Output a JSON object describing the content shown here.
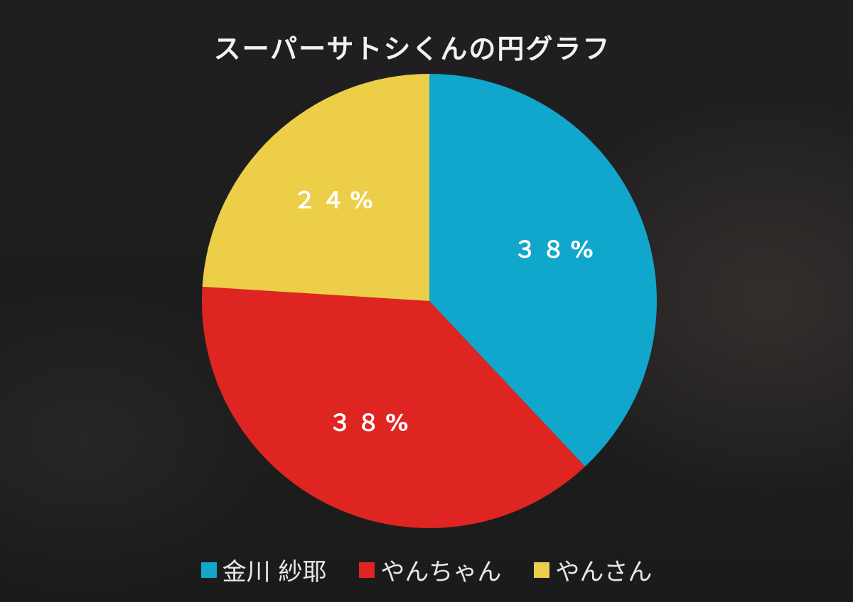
{
  "chart_data": {
    "type": "pie",
    "title": "スーパーサトシくんの円グラフ",
    "categories": [
      "金川 紗耶",
      "やんちゃん",
      "やんさん"
    ],
    "values": [
      38,
      38,
      24
    ],
    "labels": [
      "３８%",
      "３８%",
      "２４%"
    ],
    "colors": [
      "#11a6cb",
      "#df2521",
      "#ecce49"
    ],
    "legend_position": "bottom",
    "start_angle": "top",
    "direction": "clockwise"
  }
}
